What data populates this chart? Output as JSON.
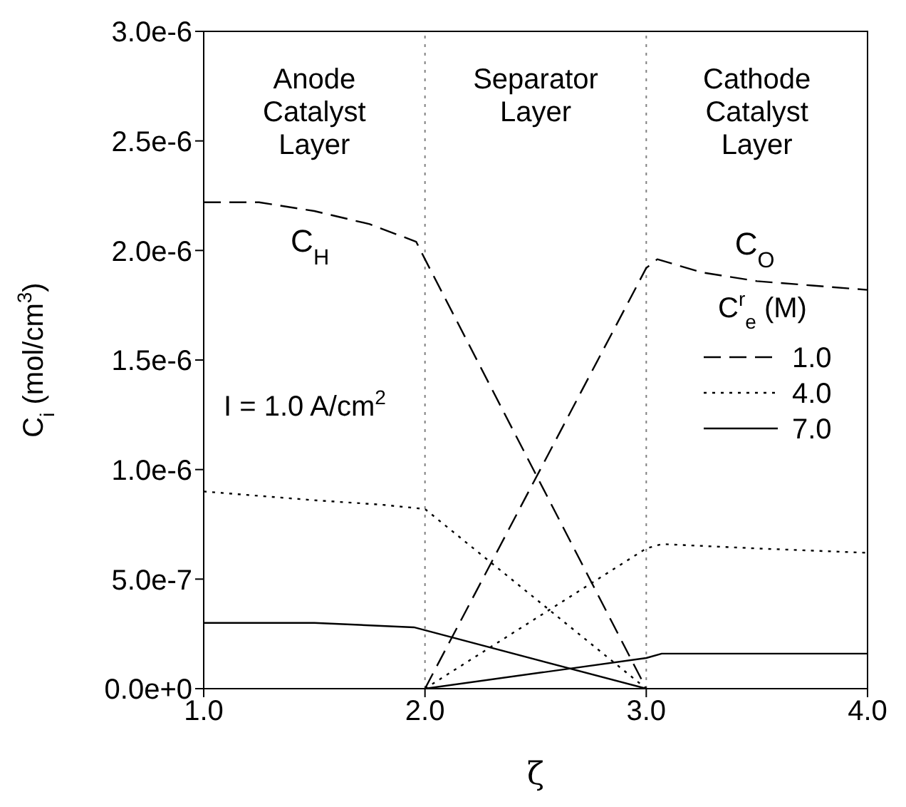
{
  "chart_data": {
    "type": "line",
    "xlabel": "ζ",
    "ylabel": "C$_{i}$  (mol/cm$^{3}$)",
    "legend_title": "C$^{r}$$_{e}$ (M)",
    "xlim": [
      1,
      4
    ],
    "xticks": [
      {
        "value": 1,
        "label": "1.0"
      },
      {
        "value": 2,
        "label": "2.0"
      },
      {
        "value": 3,
        "label": "3.0"
      },
      {
        "value": 4,
        "label": "4.0"
      }
    ],
    "ylim": [
      0,
      3e-06
    ],
    "yticks": [
      {
        "value": 0,
        "label": "0.0e+0"
      },
      {
        "value": 5e-07,
        "label": "5.0e-7"
      },
      {
        "value": 1e-06,
        "label": "1.0e-6"
      },
      {
        "value": 1.5e-06,
        "label": "1.5e-6"
      },
      {
        "value": 2e-06,
        "label": "2.0e-6"
      },
      {
        "value": 2.5e-06,
        "label": "2.5e-6"
      },
      {
        "value": 3e-06,
        "label": "3.0e-6"
      }
    ],
    "grid": false,
    "legend": "right",
    "series": [
      {
        "name": "1.0",
        "color": "#000000",
        "line_style": "dashed",
        "x": [
          1,
          1.25,
          1.5,
          1.75,
          1.96,
          2,
          3
        ],
        "values": [
          2.22e-06,
          2.22e-06,
          2.18e-06,
          2.12e-06,
          2.04e-06,
          1.96e-06,
          0
        ]
      },
      {
        "name": "4.0",
        "color": "#000000",
        "line_style": "dotted",
        "x": [
          1,
          1.5,
          1.8,
          2,
          3
        ],
        "values": [
          9e-07,
          8.6e-07,
          8.4e-07,
          8.2e-07,
          0
        ]
      },
      {
        "name": "7.0",
        "color": "#000000",
        "line_style": "solid",
        "x": [
          1,
          1.5,
          1.95,
          3
        ],
        "values": [
          3e-07,
          3e-07,
          2.8e-07,
          0
        ]
      },
      {
        "color": "#000000",
        "line_style": "dashed",
        "x": [
          2,
          3,
          3.05,
          3.25,
          3.5,
          3.75,
          4
        ],
        "values": [
          0,
          1.92e-06,
          1.96e-06,
          1.9e-06,
          1.86e-06,
          1.84e-06,
          1.82e-06
        ]
      },
      {
        "color": "#000000",
        "line_style": "dotted",
        "x": [
          2,
          3,
          3.07,
          3.5,
          4
        ],
        "values": [
          0,
          6.4e-07,
          6.6e-07,
          6.4e-07,
          6.2e-07
        ]
      },
      {
        "color": "#000000",
        "line_style": "solid",
        "x": [
          2,
          3,
          3.07,
          4
        ],
        "values": [
          0,
          1.4e-07,
          1.6e-07,
          1.6e-07
        ]
      }
    ],
    "ref_lines": [
      {
        "axis": "x",
        "value": 2,
        "color": "#808080",
        "line_style": "dotted"
      },
      {
        "axis": "x",
        "value": 3,
        "color": "#808080",
        "line_style": "dotted"
      }
    ],
    "annotations": [
      "Anode\nCatalyst\nLayer",
      "Separator\nLayer",
      "Cathode\nCatalyst\nLayer",
      "C$_{H}$",
      "C$_{O}$",
      "I = 1.0 A/cm$^{2}$"
    ]
  }
}
